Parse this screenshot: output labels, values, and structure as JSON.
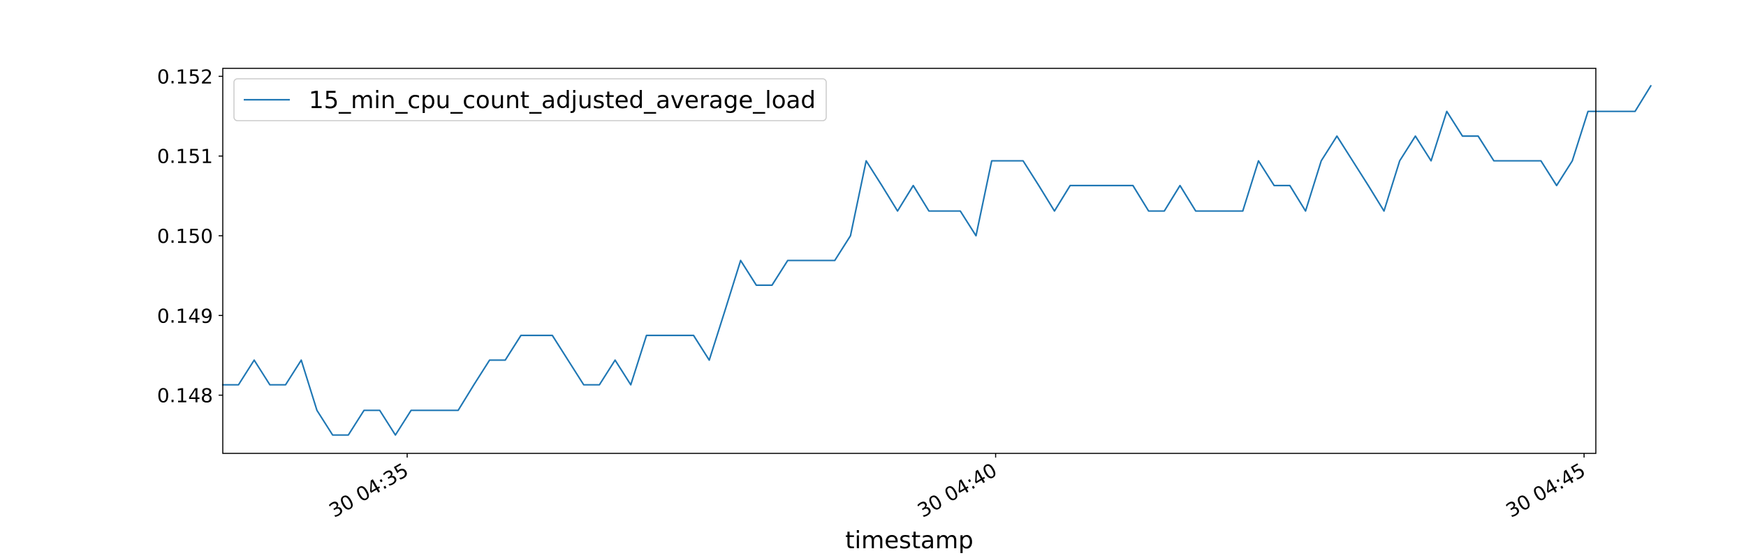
{
  "chart_data": {
    "type": "line",
    "title": "",
    "xlabel": "timestamp",
    "ylabel": "",
    "x_start": "2024-01-30 04:33:26",
    "x_step_seconds": 8,
    "xlim": [
      "2024-01-30 04:33:26",
      "2024-01-30 04:45:06"
    ],
    "ylim": [
      0.14727,
      0.1521
    ],
    "x_ticks": [
      {
        "time": "2024-01-30 04:35:00",
        "label": "30 04:35"
      },
      {
        "time": "2024-01-30 04:40:00",
        "label": "30 04:40"
      },
      {
        "time": "2024-01-30 04:45:00",
        "label": "30 04:45"
      }
    ],
    "y_ticks": [
      {
        "value": 0.148,
        "label": "0.148"
      },
      {
        "value": 0.149,
        "label": "0.149"
      },
      {
        "value": 0.15,
        "label": "0.150"
      },
      {
        "value": 0.151,
        "label": "0.151"
      },
      {
        "value": 0.152,
        "label": "0.152"
      }
    ],
    "grid": false,
    "legend": {
      "position": "upper-left"
    },
    "series": [
      {
        "name": "15_min_cpu_count_adjusted_average_load",
        "color": "#1f77b4",
        "values": [
          0.14813,
          0.14813,
          0.14844,
          0.14813,
          0.14813,
          0.14844,
          0.14781,
          0.1475,
          0.1475,
          0.14781,
          0.14781,
          0.1475,
          0.14781,
          0.14781,
          0.14781,
          0.14781,
          0.14813,
          0.14844,
          0.14844,
          0.14875,
          0.14875,
          0.14875,
          0.14844,
          0.14813,
          0.14813,
          0.14844,
          0.14813,
          0.14875,
          0.14875,
          0.14875,
          0.14875,
          0.14844,
          0.14906,
          0.14969,
          0.14938,
          0.14938,
          0.14969,
          0.14969,
          0.14969,
          0.14969,
          0.15,
          0.15094,
          0.15063,
          0.15031,
          0.15063,
          0.15031,
          0.15031,
          0.15031,
          0.15,
          0.15094,
          0.15094,
          0.15094,
          0.15063,
          0.15031,
          0.15063,
          0.15063,
          0.15063,
          0.15063,
          0.15063,
          0.15031,
          0.15031,
          0.15063,
          0.15031,
          0.15031,
          0.15031,
          0.15031,
          0.15094,
          0.15063,
          0.15063,
          0.15031,
          0.15094,
          0.15125,
          0.15094,
          0.15063,
          0.15031,
          0.15094,
          0.15125,
          0.15094,
          0.15156,
          0.15125,
          0.15125,
          0.15094,
          0.15094,
          0.15094,
          0.15094,
          0.15063,
          0.15094,
          0.15156,
          0.15156,
          0.15156,
          0.15156,
          0.15188
        ]
      }
    ]
  }
}
